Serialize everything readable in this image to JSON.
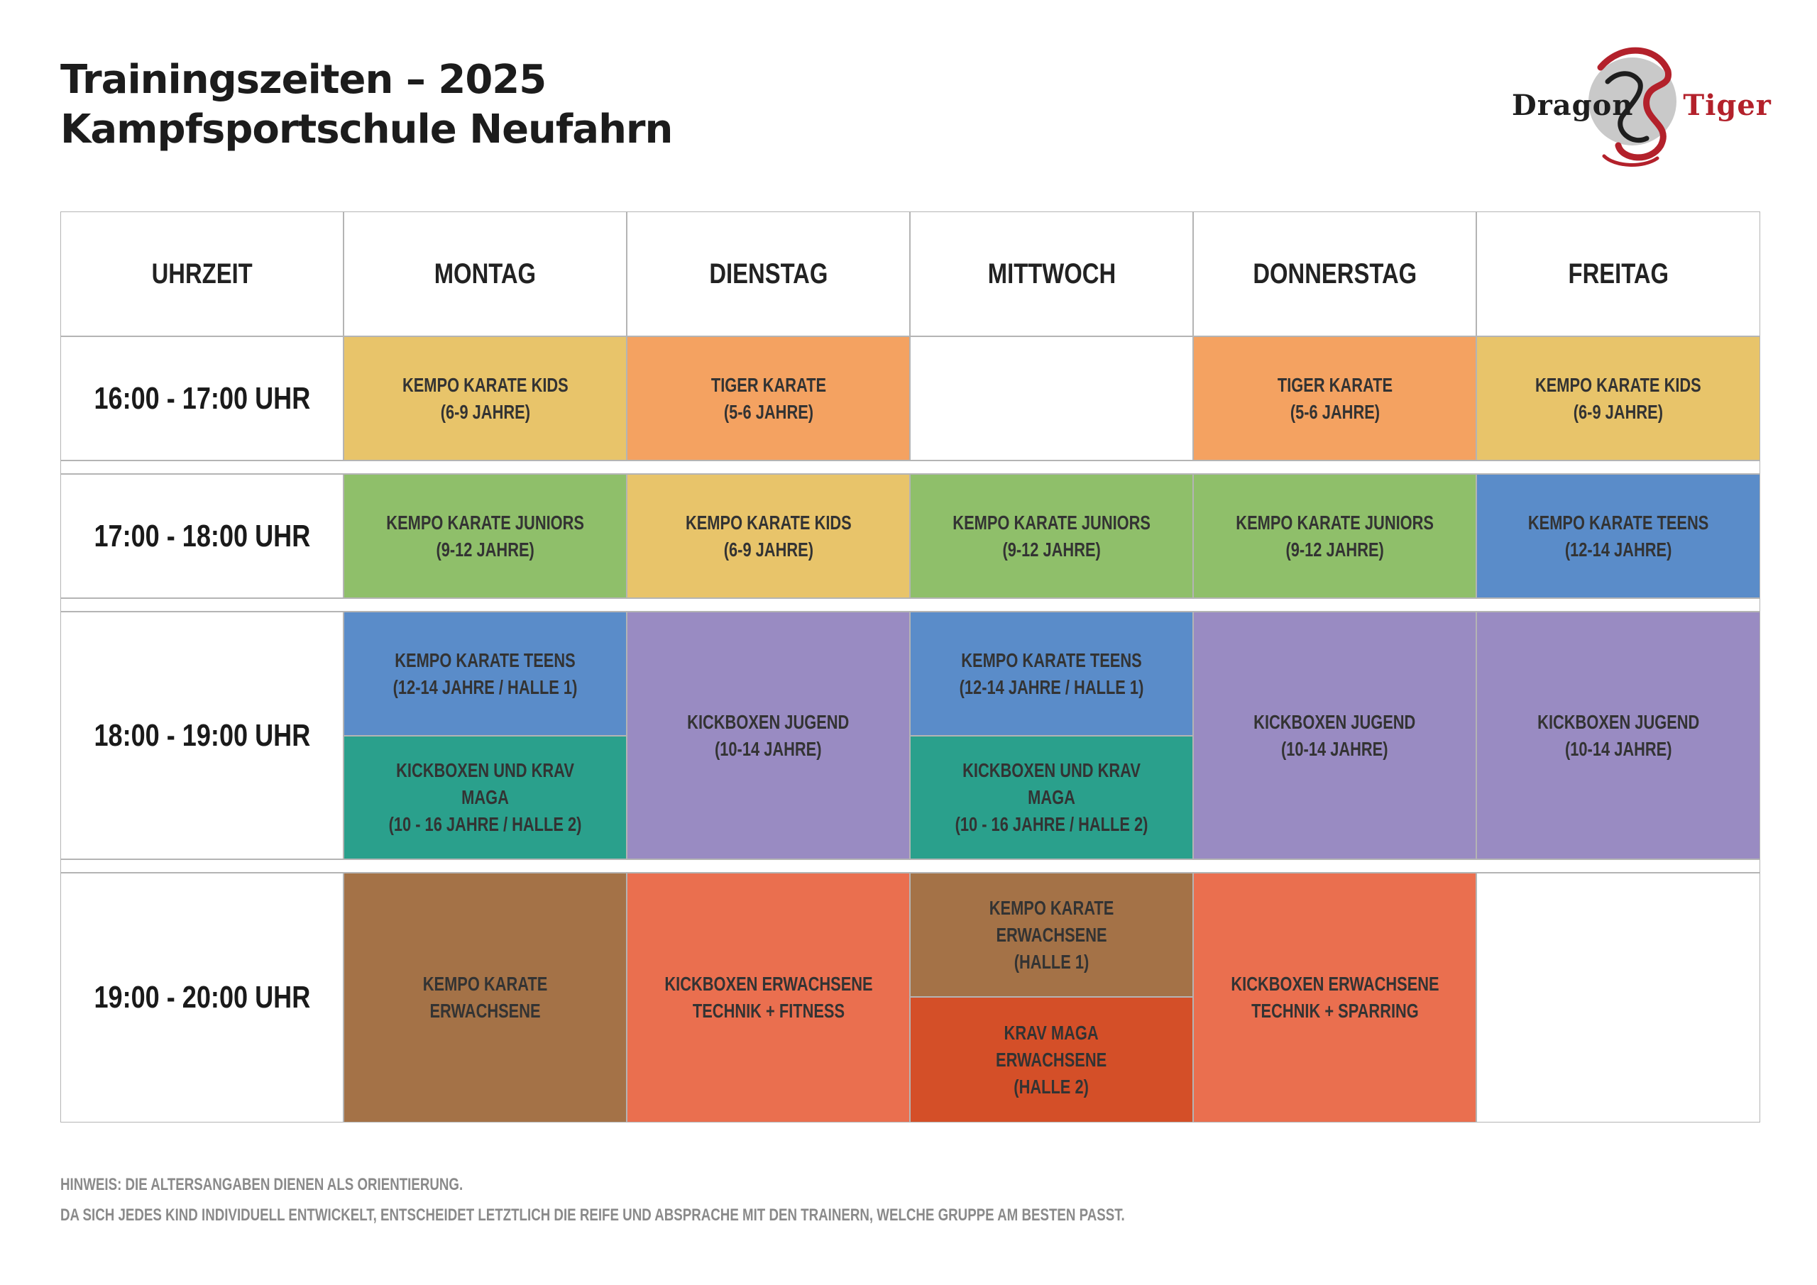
{
  "header": {
    "title_line1": "Trainingszeiten – 2025",
    "title_line2": "Kampfsportschule Neufahrn"
  },
  "logo": {
    "word1": "Dragon",
    "word2": "Tiger",
    "colors": {
      "dark": "#1e1e1e",
      "red": "#b3212b"
    }
  },
  "schedule": {
    "columns": [
      "UHRZEIT",
      "MONTAG",
      "DIENSTAG",
      "MITTWOCH",
      "DONNERSTAG",
      "FREITAG"
    ],
    "times": [
      "16:00 - 17:00 UHR",
      "17:00 - 18:00 UHR",
      "18:00 - 19:00 UHR",
      "19:00 - 20:00 UHR"
    ],
    "classes": {
      "mo_16": "KEMPO KARATE KIDS\n(6-9 JAHRE)",
      "di_16": "TIGER KARATE\n(5-6 JAHRE)",
      "do_16": "TIGER KARATE\n(5-6 JAHRE)",
      "fr_16": "KEMPO KARATE KIDS\n(6-9 JAHRE)",
      "mo_17": "KEMPO KARATE JUNIORS\n(9-12 JAHRE)",
      "di_17": "KEMPO KARATE KIDS\n(6-9 JAHRE)",
      "mi_17": "KEMPO KARATE JUNIORS\n(9-12 JAHRE)",
      "do_17": "KEMPO KARATE JUNIORS\n(9-12 JAHRE)",
      "fr_17": "KEMPO KARATE TEENS\n(12-14 JAHRE)",
      "mo_18a": "KEMPO KARATE TEENS\n(12-14 JAHRE / HALLE 1)",
      "mo_18b": "KICKBOXEN UND KRAV MAGA\n(10 - 16  JAHRE / HALLE 2)",
      "di_18": "KICKBOXEN JUGEND\n(10-14 JAHRE)",
      "mi_18a": "KEMPO KARATE TEENS\n(12-14 JAHRE / HALLE 1)",
      "mi_18b": "KICKBOXEN UND KRAV MAGA\n(10 - 16  JAHRE / HALLE 2)",
      "do_18": "KICKBOXEN JUGEND\n(10-14 JAHRE)",
      "fr_18": "KICKBOXEN JUGEND\n(10-14 JAHRE)",
      "mo_19": "KEMPO KARATE\nERWACHSENE",
      "di_19": "KICKBOXEN ERWACHSENE\nTECHNIK + FITNESS",
      "mi_19a": "KEMPO KARATE\nERWACHSENE\n(HALLE 1)",
      "mi_19b": "KRAV MAGA\nERWACHSENE\n(HALLE 2)",
      "do_19": "KICKBOXEN ERWACHSENE\nTECHNIK + SPARRING"
    },
    "colors": {
      "kids_yellow": "#e8c46a",
      "tiger_orange": "#f4a261",
      "juniors_green": "#8fbf6a",
      "teens_blue": "#5a8cc9",
      "jugend_purple": "#998bc2",
      "kravmaga_teal": "#2aa08c",
      "adults_brown": "#a47247",
      "kickbox_adult_coral": "#ea6f4f",
      "kravmaga_adult_red": "#d44f28"
    }
  },
  "footer": {
    "note1": "HINWEIS: DIE ALTERSANGABEN DIENEN ALS ORIENTIERUNG.",
    "note2": "DA SICH JEDES KIND INDIVIDUELL ENTWICKELT, ENTSCHEIDET LETZTLICH DIE REIFE UND ABSPRACHE MIT DEN TRAINERN, WELCHE GRUPPE AM BESTEN PASST."
  }
}
